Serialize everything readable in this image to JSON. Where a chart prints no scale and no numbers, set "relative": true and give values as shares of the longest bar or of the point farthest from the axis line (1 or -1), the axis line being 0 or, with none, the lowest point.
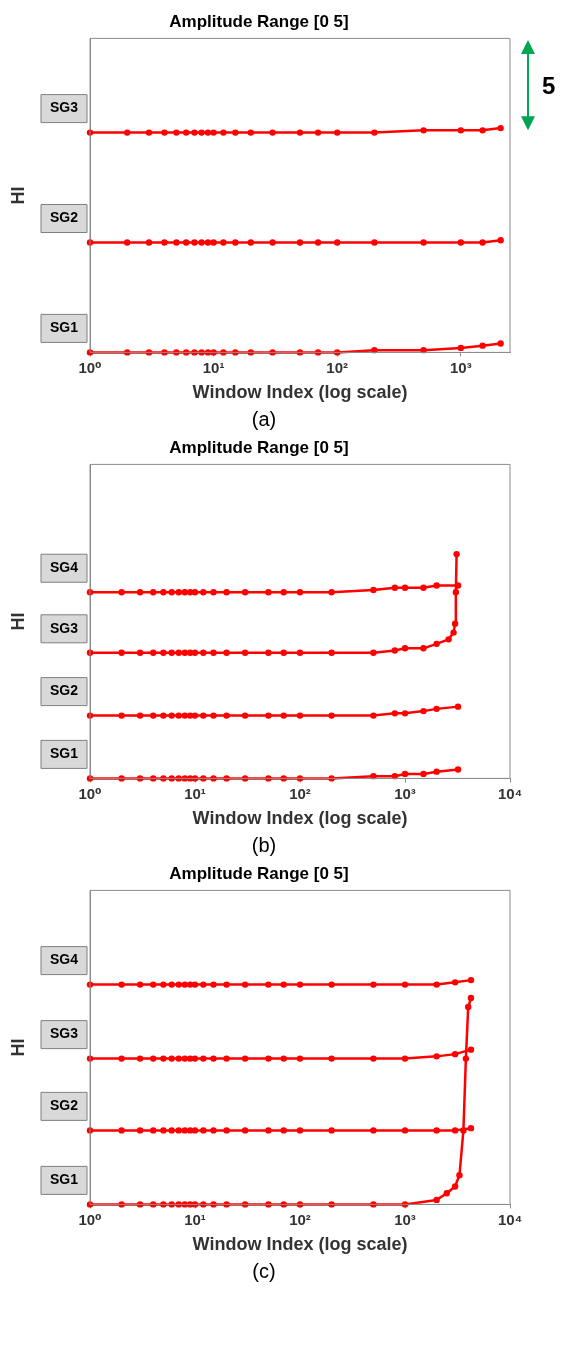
{
  "chart_data": [
    {
      "type": "line",
      "title": "Amplitude Range [0 5]",
      "xlabel": "Window Index (log scale)",
      "ylabel": "HI",
      "annotations": [
        "5",
        "(a)"
      ],
      "log": "x",
      "relative": true,
      "grid": false,
      "marker": "circle",
      "tick_labels": "x",
      "xlim": [
        1,
        2500
      ],
      "xticks": [
        {
          "value": 1,
          "label": "10⁰"
        },
        {
          "value": 10,
          "label": "10¹"
        },
        {
          "value": 100,
          "label": "10²"
        },
        {
          "value": 1000,
          "label": "10³"
        }
      ],
      "series": [
        {
          "name": "SG1",
          "color": "#ff0000",
          "x": [
            1,
            2,
            3,
            4,
            5,
            6,
            7,
            8,
            9,
            10,
            12,
            15,
            20,
            30,
            50,
            70,
            100,
            200,
            500,
            1000,
            1500,
            2100
          ],
          "values": [
            0,
            0,
            0,
            0,
            0,
            0,
            0,
            0,
            0,
            0,
            0,
            0,
            0,
            0,
            0,
            0,
            0,
            0.01,
            0.01,
            0.02,
            0.03,
            0.04
          ]
        },
        {
          "name": "SG2",
          "color": "#ff0000",
          "x": [
            1,
            2,
            3,
            4,
            5,
            6,
            7,
            8,
            9,
            10,
            12,
            15,
            20,
            30,
            50,
            70,
            100,
            200,
            500,
            1000,
            1500,
            2100
          ],
          "values": [
            0.49,
            0.49,
            0.49,
            0.49,
            0.49,
            0.49,
            0.49,
            0.49,
            0.49,
            0.49,
            0.49,
            0.49,
            0.49,
            0.49,
            0.49,
            0.49,
            0.49,
            0.49,
            0.49,
            0.49,
            0.49,
            0.5
          ]
        },
        {
          "name": "SG3",
          "color": "#ff0000",
          "x": [
            1,
            2,
            3,
            4,
            5,
            6,
            7,
            8,
            9,
            10,
            12,
            15,
            20,
            30,
            50,
            70,
            100,
            200,
            500,
            1000,
            1500,
            2100
          ],
          "values": [
            0.98,
            0.98,
            0.98,
            0.98,
            0.98,
            0.98,
            0.98,
            0.98,
            0.98,
            0.98,
            0.98,
            0.98,
            0.98,
            0.98,
            0.98,
            0.98,
            0.98,
            0.98,
            0.99,
            0.99,
            0.99,
            1
          ]
        }
      ]
    },
    {
      "type": "line",
      "title": "Amplitude Range [0 5]",
      "xlabel": "Window Index (log scale)",
      "ylabel": "HI",
      "annotations": [
        "(b)"
      ],
      "log": "x",
      "relative": true,
      "grid": false,
      "marker": "circle",
      "tick_labels": "x",
      "xlim": [
        1,
        10000
      ],
      "xticks": [
        {
          "value": 1,
          "label": "10⁰"
        },
        {
          "value": 10,
          "label": "10¹"
        },
        {
          "value": 100,
          "label": "10²"
        },
        {
          "value": 1000,
          "label": "10³"
        },
        {
          "value": 10000,
          "label": "10⁴"
        }
      ],
      "series": [
        {
          "name": "SG1",
          "color": "#ff0000",
          "x": [
            1,
            2,
            3,
            4,
            5,
            6,
            7,
            8,
            9,
            10,
            12,
            15,
            20,
            30,
            50,
            70,
            100,
            200,
            500,
            800,
            1000,
            1500,
            2000,
            3200
          ],
          "values": [
            0,
            0,
            0,
            0,
            0,
            0,
            0,
            0,
            0,
            0,
            0,
            0,
            0,
            0,
            0,
            0,
            0,
            0,
            0.01,
            0.01,
            0.02,
            0.02,
            0.03,
            0.04
          ]
        },
        {
          "name": "SG2",
          "color": "#ff0000",
          "x": [
            1,
            2,
            3,
            4,
            5,
            6,
            7,
            8,
            9,
            10,
            12,
            15,
            20,
            30,
            50,
            70,
            100,
            200,
            500,
            800,
            1000,
            1500,
            2000,
            3200
          ],
          "values": [
            0.28,
            0.28,
            0.28,
            0.28,
            0.28,
            0.28,
            0.28,
            0.28,
            0.28,
            0.28,
            0.28,
            0.28,
            0.28,
            0.28,
            0.28,
            0.28,
            0.28,
            0.28,
            0.28,
            0.29,
            0.29,
            0.3,
            0.31,
            0.32
          ]
        },
        {
          "name": "SG3",
          "color": "#ff0000",
          "x": [
            1,
            2,
            3,
            4,
            5,
            6,
            7,
            8,
            9,
            10,
            12,
            15,
            20,
            30,
            50,
            70,
            100,
            200,
            500,
            800,
            1000,
            1500,
            2000,
            2600,
            2900,
            3000,
            3050,
            3100
          ],
          "values": [
            0.56,
            0.56,
            0.56,
            0.56,
            0.56,
            0.56,
            0.56,
            0.56,
            0.56,
            0.56,
            0.56,
            0.56,
            0.56,
            0.56,
            0.56,
            0.56,
            0.56,
            0.56,
            0.56,
            0.57,
            0.58,
            0.58,
            0.6,
            0.62,
            0.65,
            0.69,
            0.83,
            1
          ]
        },
        {
          "name": "SG4",
          "color": "#ff0000",
          "x": [
            1,
            2,
            3,
            4,
            5,
            6,
            7,
            8,
            9,
            10,
            12,
            15,
            20,
            30,
            50,
            70,
            100,
            200,
            500,
            800,
            1000,
            1500,
            2000,
            3200
          ],
          "values": [
            0.83,
            0.83,
            0.83,
            0.83,
            0.83,
            0.83,
            0.83,
            0.83,
            0.83,
            0.83,
            0.83,
            0.83,
            0.83,
            0.83,
            0.83,
            0.83,
            0.83,
            0.83,
            0.84,
            0.85,
            0.85,
            0.85,
            0.86,
            0.86
          ]
        }
      ]
    },
    {
      "type": "line",
      "title": "Amplitude Range [0 5]",
      "xlabel": "Window Index (log scale)",
      "ylabel": "HI",
      "annotations": [
        "(c)"
      ],
      "log": "x",
      "relative": true,
      "grid": false,
      "marker": "circle",
      "tick_labels": "x",
      "xlim": [
        1,
        10000
      ],
      "xticks": [
        {
          "value": 1,
          "label": "10⁰"
        },
        {
          "value": 10,
          "label": "10¹"
        },
        {
          "value": 100,
          "label": "10²"
        },
        {
          "value": 1000,
          "label": "10³"
        },
        {
          "value": 10000,
          "label": "10⁴"
        }
      ],
      "series": [
        {
          "name": "SG1",
          "color": "#ff0000",
          "x": [
            1,
            2,
            3,
            4,
            5,
            6,
            7,
            8,
            9,
            10,
            12,
            15,
            20,
            30,
            50,
            70,
            100,
            200,
            500,
            1000,
            2000,
            2500,
            3000,
            3300,
            3600,
            3800,
            4000,
            4250
          ],
          "values": [
            0,
            0,
            0,
            0,
            0,
            0,
            0,
            0,
            0,
            0,
            0,
            0,
            0,
            0,
            0,
            0,
            0,
            0,
            0,
            0,
            0.02,
            0.05,
            0.08,
            0.13,
            0.33,
            0.65,
            0.88,
            0.92
          ]
        },
        {
          "name": "SG2",
          "color": "#ff0000",
          "x": [
            1,
            2,
            3,
            4,
            5,
            6,
            7,
            8,
            9,
            10,
            12,
            15,
            20,
            30,
            50,
            70,
            100,
            200,
            500,
            1000,
            2000,
            3000,
            4250
          ],
          "values": [
            0.33,
            0.33,
            0.33,
            0.33,
            0.33,
            0.33,
            0.33,
            0.33,
            0.33,
            0.33,
            0.33,
            0.33,
            0.33,
            0.33,
            0.33,
            0.33,
            0.33,
            0.33,
            0.33,
            0.33,
            0.33,
            0.33,
            0.34
          ]
        },
        {
          "name": "SG3",
          "color": "#ff0000",
          "x": [
            1,
            2,
            3,
            4,
            5,
            6,
            7,
            8,
            9,
            10,
            12,
            15,
            20,
            30,
            50,
            70,
            100,
            200,
            500,
            1000,
            2000,
            3000,
            4250
          ],
          "values": [
            0.65,
            0.65,
            0.65,
            0.65,
            0.65,
            0.65,
            0.65,
            0.65,
            0.65,
            0.65,
            0.65,
            0.65,
            0.65,
            0.65,
            0.65,
            0.65,
            0.65,
            0.65,
            0.65,
            0.65,
            0.66,
            0.67,
            0.69
          ]
        },
        {
          "name": "SG4",
          "color": "#ff0000",
          "x": [
            1,
            2,
            3,
            4,
            5,
            6,
            7,
            8,
            9,
            10,
            12,
            15,
            20,
            30,
            50,
            70,
            100,
            200,
            500,
            1000,
            2000,
            3000,
            4250
          ],
          "values": [
            0.98,
            0.98,
            0.98,
            0.98,
            0.98,
            0.98,
            0.98,
            0.98,
            0.98,
            0.98,
            0.98,
            0.98,
            0.98,
            0.98,
            0.98,
            0.98,
            0.98,
            0.98,
            0.98,
            0.98,
            0.98,
            0.99,
            1
          ]
        }
      ]
    }
  ]
}
